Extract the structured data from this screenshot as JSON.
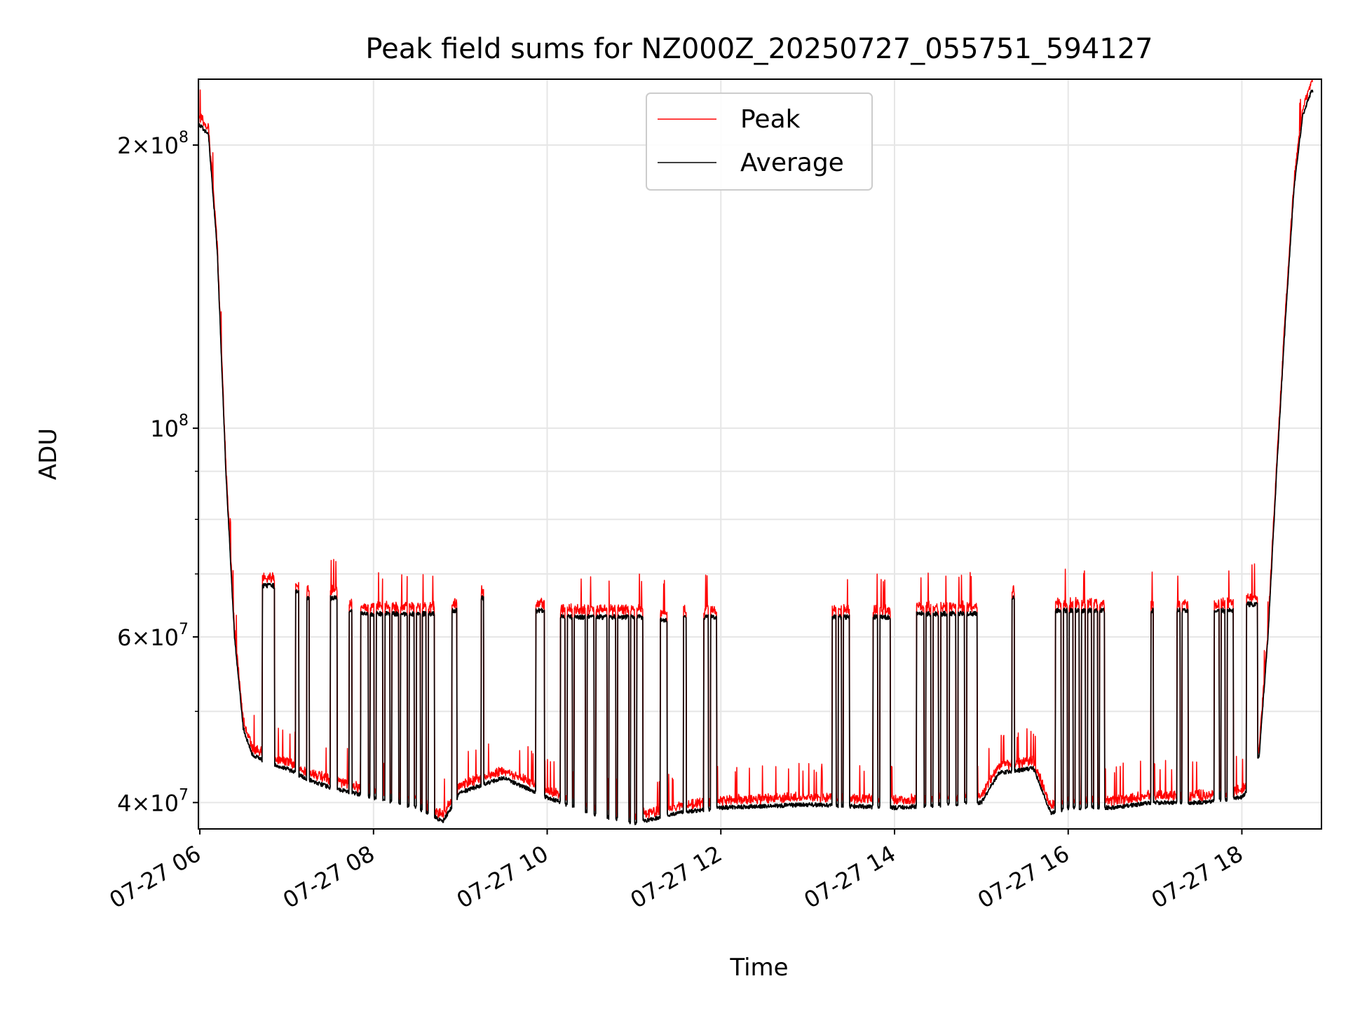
{
  "chart_data": {
    "type": "line",
    "title": "Peak field sums for NZ000Z_20250727_055751_594127",
    "xlabel": "Time",
    "ylabel": "ADU",
    "y_scale": "log",
    "ylim": [
      37500000,
      235000000
    ],
    "xlim": [
      "07-27 05:59",
      "07-27 18:55"
    ],
    "grid": true,
    "legend_position": "top-center",
    "x_ticks": [
      "07-27 06",
      "07-27 08",
      "07-27 10",
      "07-27 12",
      "07-27 14",
      "07-27 16",
      "07-27 18"
    ],
    "y_tick_labels": [
      {
        "value": 40000000,
        "mantissa": "4",
        "exp": "7"
      },
      {
        "value": 60000000,
        "mantissa": "6",
        "exp": "7"
      },
      {
        "value": 100000000,
        "mantissa": "",
        "exp": "8"
      },
      {
        "value": 200000000,
        "mantissa": "2",
        "exp": "8"
      }
    ],
    "series": [
      {
        "name": "Peak",
        "color": "#ff0000"
      },
      {
        "name": "Average",
        "color": "#000000"
      }
    ],
    "baseline": {
      "time_h": [
        6.0,
        6.1,
        6.2,
        6.3,
        6.4,
        6.5,
        6.6,
        6.8,
        7.0,
        7.2,
        7.5,
        8.0,
        8.5,
        8.8,
        9.0,
        9.5,
        10.0,
        10.5,
        11.0,
        11.5,
        12.0,
        13.0,
        14.0,
        15.0,
        15.2,
        15.6,
        15.8,
        16.0,
        16.5,
        17.0,
        17.5,
        18.0,
        18.1,
        18.2,
        18.3,
        18.4,
        18.5,
        18.6,
        18.7,
        18.8
      ],
      "adu_avg": [
        210000000,
        205000000,
        155000000,
        90000000,
        60000000,
        48000000,
        45000000,
        44000000,
        43500000,
        42500000,
        41500000,
        40500000,
        39500000,
        38200000,
        41000000,
        42500000,
        40500000,
        39000000,
        38000000,
        39000000,
        39500000,
        39800000,
        39500000,
        40000000,
        43000000,
        43500000,
        39000000,
        39500000,
        39500000,
        40000000,
        40000000,
        40500000,
        41500000,
        45000000,
        60000000,
        90000000,
        130000000,
        180000000,
        215000000,
        228000000
      ]
    },
    "bursts": [
      {
        "start_h": 6.72,
        "end_h": 6.86,
        "adu_avg": 68000000
      },
      {
        "start_h": 7.1,
        "end_h": 7.14,
        "adu_avg": 67000000
      },
      {
        "start_h": 7.23,
        "end_h": 7.26,
        "adu_avg": 66000000
      },
      {
        "start_h": 7.5,
        "end_h": 7.58,
        "adu_avg": 66000000
      },
      {
        "start_h": 7.72,
        "end_h": 7.75,
        "adu_avg": 64000000
      },
      {
        "start_h": 7.85,
        "end_h": 8.7,
        "adu_avg": 63500000,
        "dips_h": [
          7.95,
          8.02,
          8.12,
          8.2,
          8.3,
          8.4,
          8.48,
          8.55,
          8.62
        ]
      },
      {
        "start_h": 8.9,
        "end_h": 8.96,
        "adu_avg": 64000000
      },
      {
        "start_h": 9.24,
        "end_h": 9.27,
        "adu_avg": 66000000
      },
      {
        "start_h": 9.87,
        "end_h": 9.97,
        "adu_avg": 64000000
      },
      {
        "start_h": 10.15,
        "end_h": 11.1,
        "adu_avg": 63000000,
        "dips_h": [
          10.22,
          10.3,
          10.45,
          10.55,
          10.7,
          10.8,
          10.95,
          11.02
        ]
      },
      {
        "start_h": 11.3,
        "end_h": 11.38,
        "adu_avg": 62500000
      },
      {
        "start_h": 11.57,
        "end_h": 11.6,
        "adu_avg": 63000000
      },
      {
        "start_h": 11.8,
        "end_h": 11.95,
        "adu_avg": 63000000,
        "dips_h": [
          11.87
        ]
      },
      {
        "start_h": 13.28,
        "end_h": 13.48,
        "adu_avg": 63000000,
        "dips_h": [
          13.34,
          13.4
        ]
      },
      {
        "start_h": 13.75,
        "end_h": 13.95,
        "adu_avg": 63000000,
        "dips_h": [
          13.82
        ]
      },
      {
        "start_h": 14.25,
        "end_h": 14.95,
        "adu_avg": 63500000,
        "dips_h": [
          14.35,
          14.43,
          14.52,
          14.62,
          14.72,
          14.82
        ]
      },
      {
        "start_h": 15.35,
        "end_h": 15.38,
        "adu_avg": 66000000
      },
      {
        "start_h": 15.85,
        "end_h": 16.42,
        "adu_avg": 64000000,
        "dips_h": [
          15.93,
          16.0,
          16.07,
          16.14,
          16.21,
          16.28,
          16.35
        ]
      },
      {
        "start_h": 16.95,
        "end_h": 16.98,
        "adu_avg": 64000000
      },
      {
        "start_h": 17.25,
        "end_h": 17.38,
        "adu_avg": 64000000,
        "dips_h": [
          17.3
        ]
      },
      {
        "start_h": 17.68,
        "end_h": 17.9,
        "adu_avg": 64000000,
        "dips_h": [
          17.75,
          17.82
        ]
      },
      {
        "start_h": 18.05,
        "end_h": 18.18,
        "adu_avg": 65000000
      }
    ]
  }
}
